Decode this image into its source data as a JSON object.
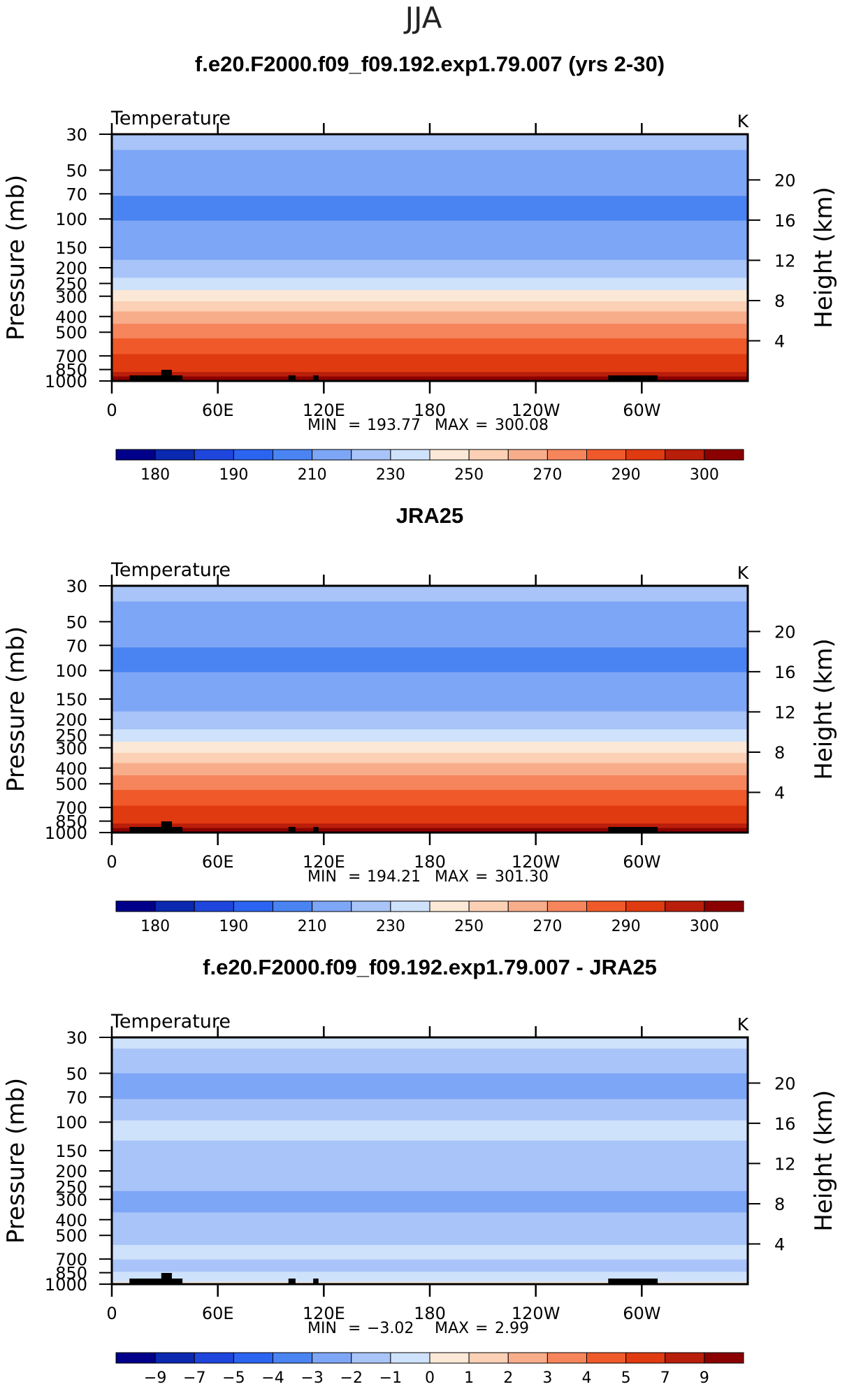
{
  "season": "JJA",
  "colormaps": {
    "temperature": [
      "#00008b",
      "#0a28b0",
      "#1e46dc",
      "#2b64f0",
      "#4a84f2",
      "#7ea6f6",
      "#a8c4f8",
      "#cfe2fb",
      "#fbe8d6",
      "#fbd0b5",
      "#f8ad8a",
      "#f6855c",
      "#f05a2a",
      "#e03a10",
      "#b81e0a",
      "#8b0000"
    ],
    "difference": [
      "#00008b",
      "#0a28b0",
      "#1e46dc",
      "#2b64f0",
      "#4a84f2",
      "#7ea6f6",
      "#a8c4f8",
      "#cfe2fb",
      "#fbe8d6",
      "#fbd0b5",
      "#f8ad8a",
      "#f6855c",
      "#f05a2a",
      "#e03a10",
      "#b81e0a",
      "#8b0000"
    ]
  },
  "chart_data": [
    {
      "type": "heatmap",
      "title": "f.e20.F2000.f09_f09.192.exp1.79.007 (yrs 2-30)",
      "variable_label": "Temperature",
      "units": "K",
      "ylabel": "Pressure (mb)",
      "ylabel_right": "Height (km)",
      "x_tick_labels": [
        "0",
        "60E",
        "120E",
        "180",
        "120W",
        "60W"
      ],
      "x_ticks_deg": [
        0,
        60,
        120,
        180,
        240,
        300
      ],
      "xlim": [
        0,
        360
      ],
      "pressure_levels": [
        30,
        50,
        70,
        100,
        150,
        200,
        250,
        300,
        400,
        500,
        700,
        850,
        1000
      ],
      "y_tick_labels": [
        "30",
        "50",
        "70",
        "100",
        "150",
        "200",
        "250",
        "300",
        "400",
        "500",
        "700",
        "850",
        "1000"
      ],
      "ylim": [
        1000,
        30
      ],
      "y_scale": "log",
      "height_ticks_km": [
        20,
        16,
        12,
        8,
        4
      ],
      "height_tick_labels": [
        "20",
        "16",
        "12",
        "8",
        "4"
      ],
      "min_label": "MIN",
      "max_label": "MAX",
      "min": "193.77",
      "max": "300.08",
      "colorbar_levels": [
        175,
        180,
        185,
        190,
        200,
        210,
        220,
        230,
        240,
        250,
        260,
        270,
        280,
        290,
        295,
        300
      ],
      "colorbar_tick_labels": [
        "180",
        "190",
        "210",
        "230",
        "250",
        "270",
        "290",
        "300"
      ],
      "band_profile": {
        "pressure": [
          1000,
          925,
          850,
          700,
          550,
          450,
          350,
          290,
          240,
          210,
          190,
          165,
          135,
          80,
          55,
          45,
          30
        ],
        "temperature": [
          300,
          294,
          288,
          281,
          270,
          261,
          247,
          233,
          222,
          216,
          212,
          208,
          203,
          198,
          204,
          208,
          212
        ]
      }
    },
    {
      "type": "heatmap",
      "title": "JRA25",
      "variable_label": "Temperature",
      "units": "K",
      "ylabel": "Pressure (mb)",
      "ylabel_right": "Height (km)",
      "x_tick_labels": [
        "0",
        "60E",
        "120E",
        "180",
        "120W",
        "60W"
      ],
      "x_ticks_deg": [
        0,
        60,
        120,
        180,
        240,
        300
      ],
      "xlim": [
        0,
        360
      ],
      "pressure_levels": [
        30,
        50,
        70,
        100,
        150,
        200,
        250,
        300,
        400,
        500,
        700,
        850,
        1000
      ],
      "y_tick_labels": [
        "30",
        "50",
        "70",
        "100",
        "150",
        "200",
        "250",
        "300",
        "400",
        "500",
        "700",
        "850",
        "1000"
      ],
      "ylim": [
        1000,
        30
      ],
      "y_scale": "log",
      "height_ticks_km": [
        20,
        16,
        12,
        8,
        4
      ],
      "height_tick_labels": [
        "20",
        "16",
        "12",
        "8",
        "4"
      ],
      "min_label": "MIN",
      "max_label": "MAX",
      "min": "194.21",
      "max": "301.30",
      "colorbar_levels": [
        175,
        180,
        185,
        190,
        200,
        210,
        220,
        230,
        240,
        250,
        260,
        270,
        280,
        290,
        295,
        300
      ],
      "colorbar_tick_labels": [
        "180",
        "190",
        "210",
        "230",
        "250",
        "270",
        "290",
        "300"
      ],
      "band_profile": {
        "pressure": [
          1000,
          925,
          850,
          700,
          550,
          450,
          350,
          290,
          240,
          210,
          190,
          165,
          135,
          80,
          55,
          45,
          30
        ],
        "temperature": [
          301,
          294,
          288,
          281,
          270,
          261,
          247,
          233,
          222,
          216,
          212,
          208,
          203,
          198,
          204,
          208,
          212
        ]
      }
    },
    {
      "type": "heatmap",
      "title": "f.e20.F2000.f09_f09.192.exp1.79.007 - JRA25",
      "variable_label": "Temperature",
      "units": "K",
      "ylabel": "Pressure (mb)",
      "ylabel_right": "Height (km)",
      "x_tick_labels": [
        "0",
        "60E",
        "120E",
        "180",
        "120W",
        "60W"
      ],
      "x_ticks_deg": [
        0,
        60,
        120,
        180,
        240,
        300
      ],
      "xlim": [
        0,
        360
      ],
      "pressure_levels": [
        30,
        50,
        70,
        100,
        150,
        200,
        250,
        300,
        400,
        500,
        700,
        850,
        1000
      ],
      "y_tick_labels": [
        "30",
        "50",
        "70",
        "100",
        "150",
        "200",
        "250",
        "300",
        "400",
        "500",
        "700",
        "850",
        "1000"
      ],
      "ylim": [
        1000,
        30
      ],
      "y_scale": "log",
      "height_ticks_km": [
        20,
        16,
        12,
        8,
        4
      ],
      "height_tick_labels": [
        "20",
        "16",
        "12",
        "8",
        "4"
      ],
      "min_label": "MIN",
      "max_label": "MAX",
      "min": "-3.02",
      "max": "2.99",
      "colorbar_levels": [
        -9,
        -7,
        -5,
        -4,
        -3,
        -2,
        -1,
        0,
        1,
        2,
        3,
        4,
        5,
        7,
        9
      ],
      "colorbar_tick_labels": [
        "-9",
        "-7",
        "-5",
        "-4",
        "-3",
        "-2",
        "-1",
        "0",
        "1",
        "2",
        "3",
        "4",
        "5",
        "7",
        "9"
      ],
      "band_profile": {
        "pressure": [
          1000,
          900,
          780,
          620,
          520,
          420,
          300,
          230,
          150,
          110,
          85,
          60,
          40,
          30
        ],
        "temperature": [
          0.3,
          -0.5,
          -1.5,
          -0.5,
          -1.5,
          -1.5,
          -2.5,
          -1.5,
          -1.5,
          -0.5,
          -1.5,
          -2.5,
          -1.5,
          -0.5
        ]
      }
    }
  ]
}
